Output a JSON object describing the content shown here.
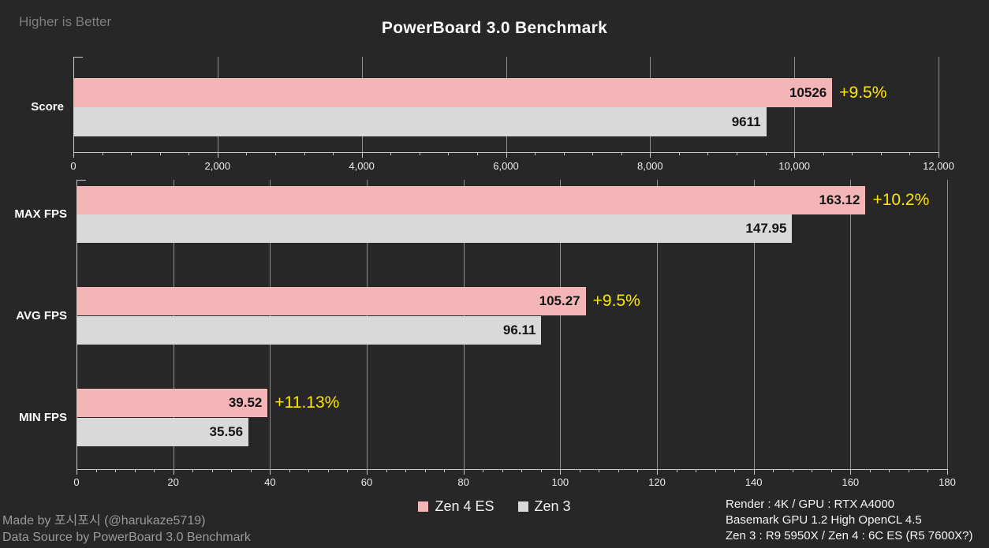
{
  "header": {
    "note": "Higher is Better",
    "title": "PowerBoard 3.0 Benchmark"
  },
  "colors": {
    "background": "#272727",
    "zen4_pink": "#F3B5B6",
    "zen3_gray": "#D9D9D9",
    "delta_yellow": "#FFE600"
  },
  "chart_data": [
    {
      "type": "bar",
      "orientation": "horizontal",
      "categories": [
        "Score"
      ],
      "series": [
        {
          "name": "Zen 4 ES",
          "color": "#F3B5B6",
          "values": [
            10526
          ],
          "value_labels": [
            "10526"
          ],
          "delta_labels": [
            "+9.5%"
          ]
        },
        {
          "name": "Zen 3",
          "color": "#D9D9D9",
          "values": [
            9611
          ],
          "value_labels": [
            "9611"
          ],
          "delta_labels": [
            null
          ]
        }
      ],
      "xlim": [
        0,
        12000
      ],
      "major_tick": 2000,
      "minor_tick": 400,
      "tick_labels": [
        "0",
        "2,000",
        "4,000",
        "6,000",
        "8,000",
        "10,000",
        "12,000"
      ],
      "grid": true,
      "legend_position": "bottom"
    },
    {
      "type": "bar",
      "orientation": "horizontal",
      "categories": [
        "MAX FPS",
        "AVG FPS",
        "MIN FPS"
      ],
      "series": [
        {
          "name": "Zen 4 ES",
          "color": "#F3B5B6",
          "values": [
            163.12,
            105.27,
            39.52
          ],
          "value_labels": [
            "163.12",
            "105.27",
            "39.52"
          ],
          "delta_labels": [
            "+10.2%",
            "+9.5%",
            "+11.13%"
          ]
        },
        {
          "name": "Zen 3",
          "color": "#D9D9D9",
          "values": [
            147.95,
            96.11,
            35.56
          ],
          "value_labels": [
            "147.95",
            "96.11",
            "35.56"
          ],
          "delta_labels": [
            null,
            null,
            null
          ]
        }
      ],
      "xlim": [
        0,
        180
      ],
      "major_tick": 20,
      "minor_tick": 4,
      "tick_labels": [
        "0",
        "20",
        "40",
        "60",
        "80",
        "100",
        "120",
        "140",
        "160",
        "180"
      ],
      "grid": true,
      "legend_position": "bottom"
    }
  ],
  "legend": {
    "items": [
      {
        "label": "Zen 4 ES",
        "color": "#F3B5B6"
      },
      {
        "label": "Zen 3",
        "color": "#D9D9D9"
      }
    ]
  },
  "footer_left": [
    "Made by 포시포시 (@harukaze5719)",
    "Data Source by PowerBoard 3.0 Benchmark"
  ],
  "footer_right": [
    "Render : 4K / GPU : RTX A4000",
    "Basemark GPU 1.2 High OpenCL 4.5",
    "Zen 3 : R9 5950X / Zen 4 : 6C ES (R5 7600X?)"
  ]
}
